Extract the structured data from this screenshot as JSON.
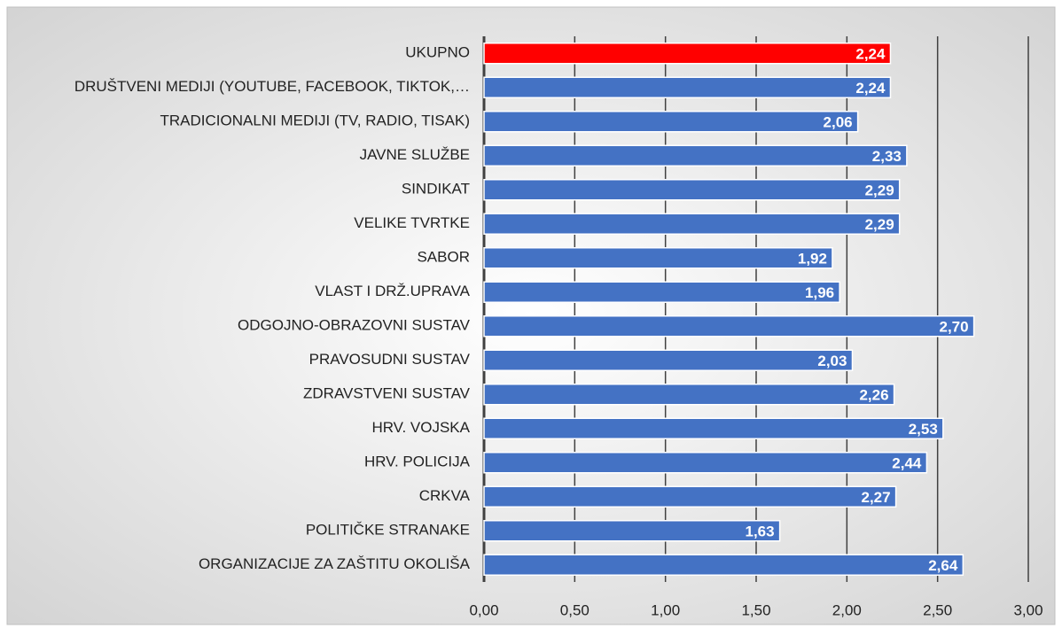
{
  "chart_data": {
    "type": "barh",
    "categories": [
      "UKUPNO",
      "DRUŠTVENI MEDIJI (YOUTUBE, FACEBOOK, TIKTOK,…",
      "TRADICIONALNI MEDIJI (TV, RADIO, TISAK)",
      "JAVNE SLUŽBE",
      "SINDIKAT",
      "VELIKE TVRTKE",
      "SABOR",
      "VLAST I DRŽ.UPRAVA",
      "ODGOJNO-OBRAZOVNI SUSTAV",
      "PRAVOSUDNI SUSTAV",
      "ZDRAVSTVENI SUSTAV",
      "HRV. VOJSKA",
      "HRV. POLICIJA",
      "CRKVA",
      "POLITIČKE STRANAKE",
      "ORGANIZACIJE ZA ZAŠTITU OKOLIŠA"
    ],
    "values": [
      2.24,
      2.24,
      2.06,
      2.33,
      2.29,
      2.29,
      1.92,
      1.96,
      2.7,
      2.03,
      2.26,
      2.53,
      2.44,
      2.27,
      1.63,
      2.64
    ],
    "value_labels": [
      "2,24",
      "2,24",
      "2,06",
      "2,33",
      "2,29",
      "2,29",
      "1,92",
      "1,96",
      "2,70",
      "2,03",
      "2,26",
      "2,53",
      "2,44",
      "2,27",
      "1,63",
      "2,64"
    ],
    "colors": [
      "#ff0000",
      "#4472c4",
      "#4472c4",
      "#4472c4",
      "#4472c4",
      "#4472c4",
      "#4472c4",
      "#4472c4",
      "#4472c4",
      "#4472c4",
      "#4472c4",
      "#4472c4",
      "#4472c4",
      "#4472c4",
      "#4472c4",
      "#4472c4"
    ],
    "xlim": [
      0,
      3
    ],
    "xticks": [
      {
        "value": 0,
        "label": "0,00"
      },
      {
        "value": 0.5,
        "label": "0,50"
      },
      {
        "value": 1,
        "label": "1,00"
      },
      {
        "value": 1.5,
        "label": "1,50"
      },
      {
        "value": 2,
        "label": "2,00"
      },
      {
        "value": 2.5,
        "label": "2,50"
      },
      {
        "value": 3,
        "label": "3,00"
      }
    ],
    "grid": true
  }
}
